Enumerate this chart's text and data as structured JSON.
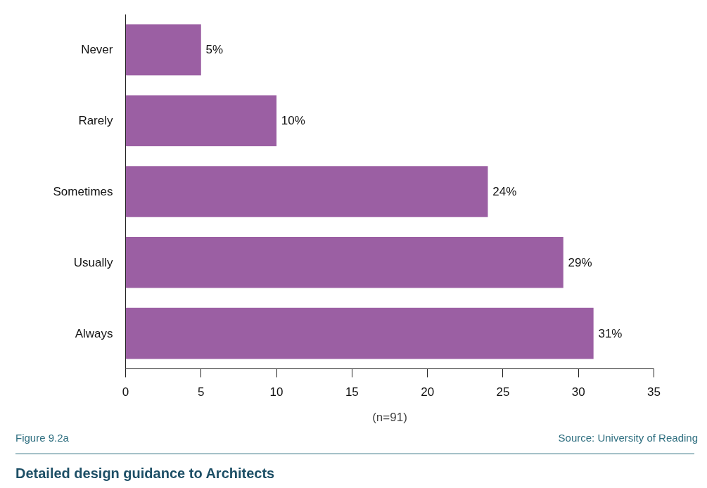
{
  "chart_data": {
    "type": "bar",
    "orientation": "horizontal",
    "title": "Detailed design guidance to Architects",
    "xlabel": "(n=91)",
    "categories": [
      "Never",
      "Rarely",
      "Sometimes",
      "Usually",
      "Always"
    ],
    "values": [
      5,
      10,
      24,
      29,
      31
    ],
    "value_labels": [
      "5%",
      "10%",
      "24%",
      "29%",
      "31%"
    ],
    "color": "#9b5fa3",
    "xlim": [
      0,
      35
    ],
    "xticks": [
      0,
      5,
      10,
      15,
      20,
      25,
      30,
      35
    ],
    "annotations": [
      "Figure 9.2a",
      "Source: University of Reading"
    ]
  }
}
